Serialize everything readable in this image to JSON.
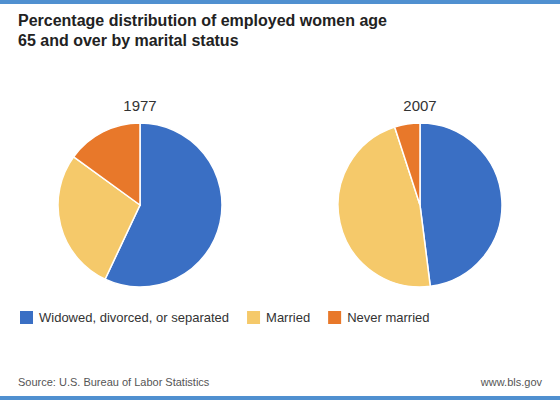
{
  "chart_data": {
    "type": "pie",
    "title": "Percentage distribution of employed women age\n65 and over by marital status",
    "categories": [
      "Widowed, divorced, or separated",
      "Married",
      "Never married"
    ],
    "colors": [
      "#3a6fc4",
      "#f5c96a",
      "#e8782a"
    ],
    "series": [
      {
        "name": "1977",
        "values": [
          57,
          28,
          15
        ]
      },
      {
        "name": "2007",
        "values": [
          48,
          47,
          5
        ]
      }
    ],
    "legend": "lower-left",
    "annotations": [
      "Source: U.S. Bureau of Labor Statistics",
      "www.bls.gov"
    ]
  }
}
